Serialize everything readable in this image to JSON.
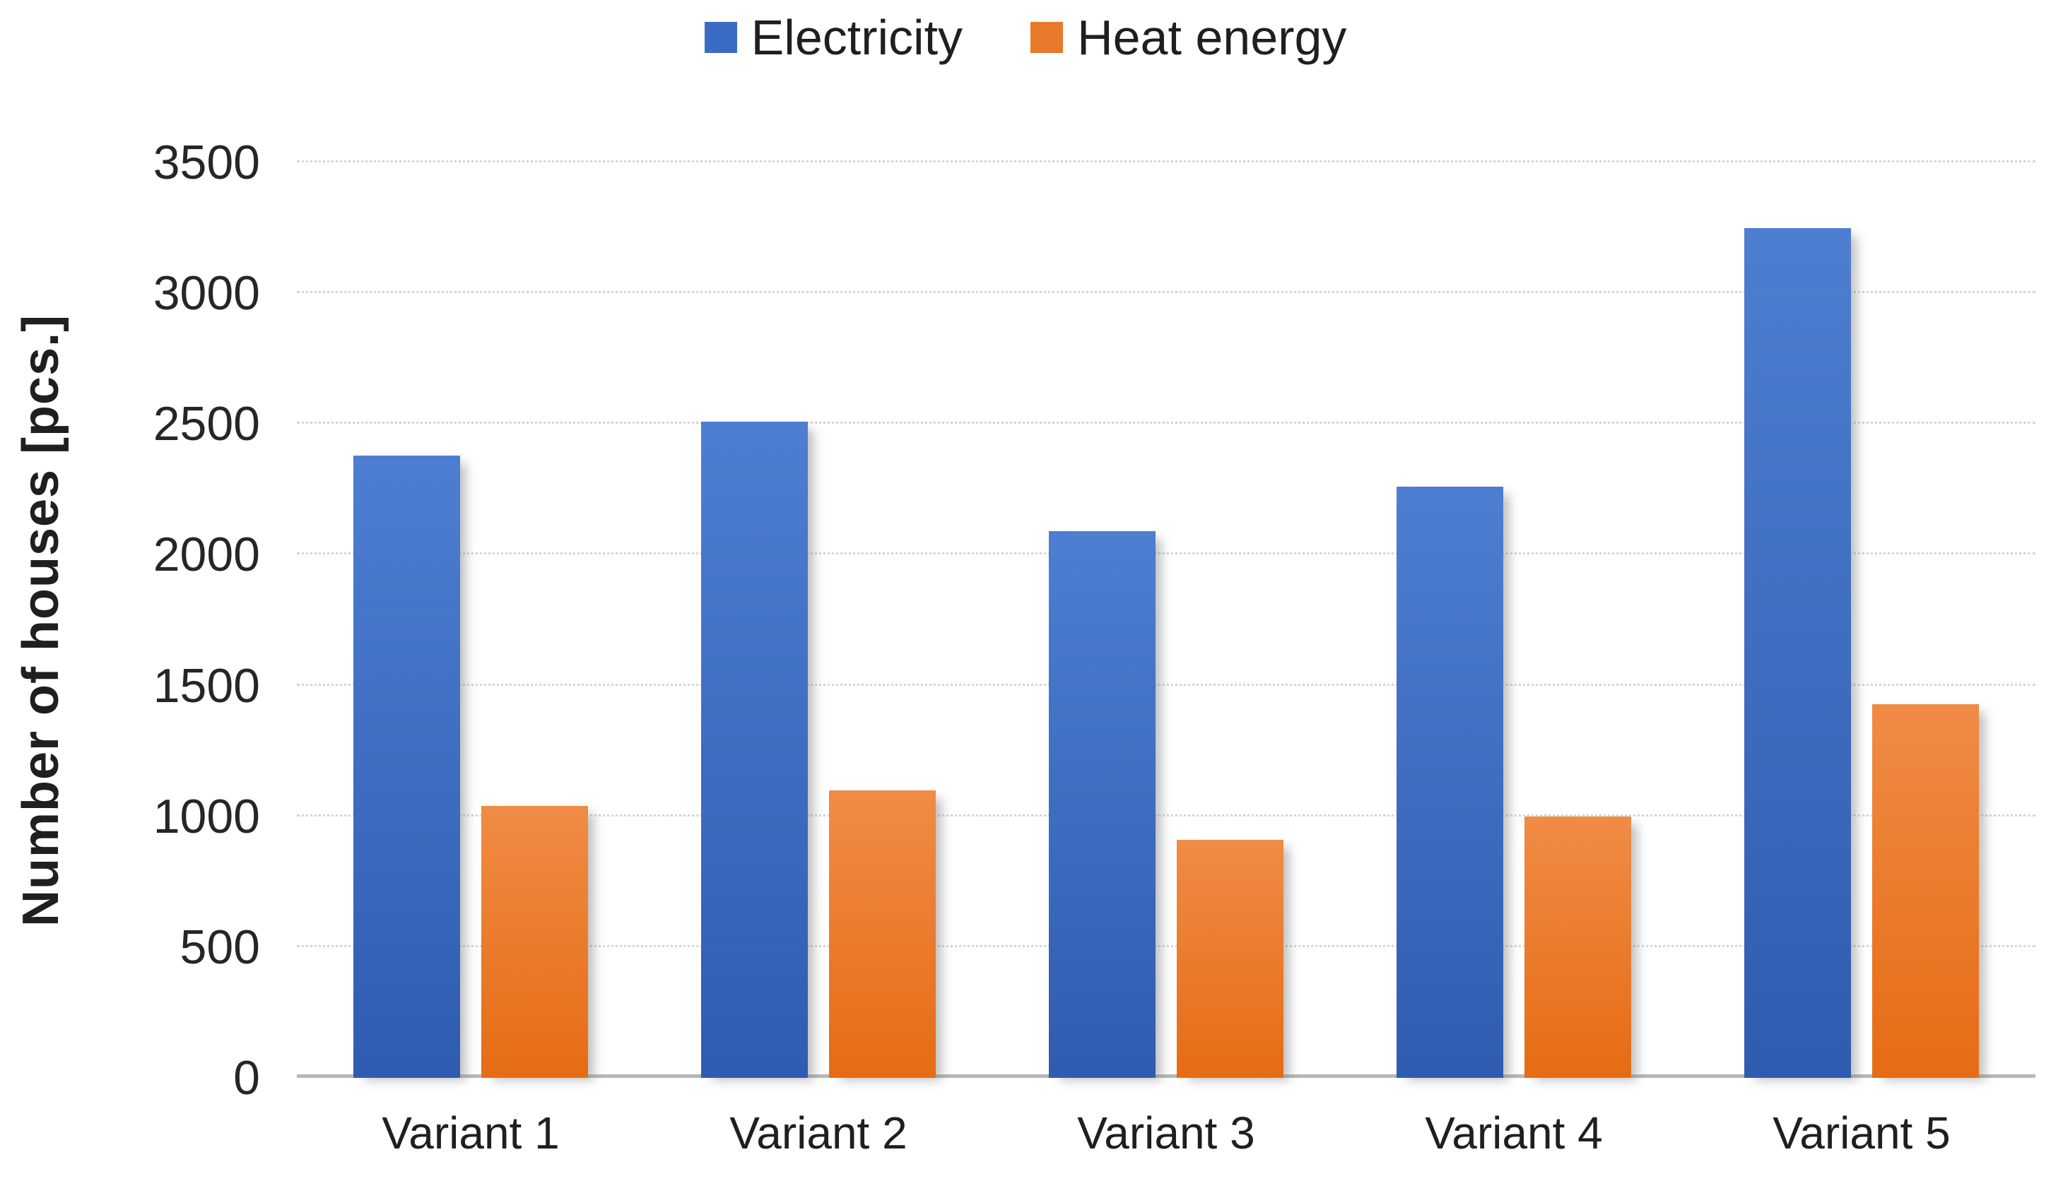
{
  "chart_data": {
    "type": "bar",
    "title": "",
    "categories": [
      "Variant 1",
      "Variant 2",
      "Variant 3",
      "Variant 4",
      "Variant 5"
    ],
    "series": [
      {
        "name": "Electricity",
        "values": [
          2380,
          2510,
          2090,
          2260,
          3250
        ],
        "color_top": "#4e7ed1",
        "color_bottom": "#2f5cb0",
        "legend_color": "#3a6cc6"
      },
      {
        "name": "Heat energy",
        "values": [
          1040,
          1100,
          910,
          1000,
          1430
        ],
        "color_top": "#f08b45",
        "color_bottom": "#e56c14",
        "legend_color": "#e8782a"
      }
    ],
    "xlabel": "",
    "ylabel": "Number of houses [pcs.]",
    "ylim": [
      0,
      3500
    ],
    "yticks": [
      0,
      500,
      1000,
      1500,
      2000,
      2500,
      3000,
      3500
    ],
    "grid": "horizontal-dotted",
    "legend_position": "top-center",
    "background": "#ffffff",
    "text_color": "#262626",
    "gridline_color": "#d5d5d5",
    "axisline_color": "#b7b7b7"
  }
}
